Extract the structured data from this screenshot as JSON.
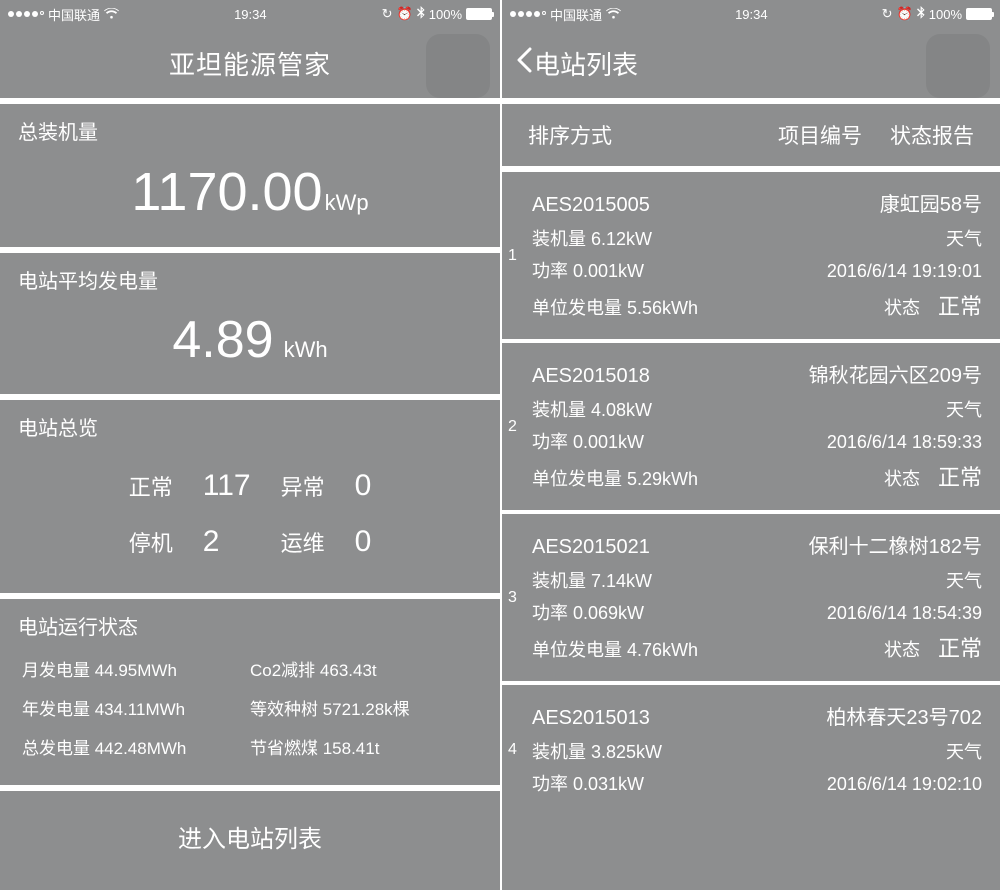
{
  "colors": {
    "bg": "#8d8e8f",
    "fg": "#ffffff",
    "divider": "#ffffff"
  },
  "statusbar": {
    "carrier": "中国联通",
    "time": "19:34",
    "battery_pct": "100%",
    "signal_dots_filled": 4,
    "signal_dots_total": 5
  },
  "left": {
    "title": "亚坦能源管家",
    "capacity": {
      "label": "总装机量",
      "value": "1170.00",
      "unit": "kWp"
    },
    "avg": {
      "label": "电站平均发电量",
      "value": "4.89",
      "unit": "kWh"
    },
    "overview": {
      "label": "电站总览",
      "normal_label": "正常",
      "normal_value": "117",
      "abnormal_label": "异常",
      "abnormal_value": "0",
      "down_label": "停机",
      "down_value": "2",
      "maint_label": "运维",
      "maint_value": "0"
    },
    "running": {
      "label": "电站运行状态",
      "items": [
        {
          "k": "月发电量",
          "v": "44.95MWh"
        },
        {
          "k": "Co2减排",
          "v": "463.43t"
        },
        {
          "k": "年发电量",
          "v": "434.11MWh"
        },
        {
          "k": "等效种树",
          "v": "5721.28k棵"
        },
        {
          "k": "总发电量",
          "v": "442.48MWh"
        },
        {
          "k": "节省燃煤",
          "v": "158.41t"
        }
      ]
    },
    "enter": "进入电站列表"
  },
  "right": {
    "back": "电站列表",
    "tabs": {
      "sort": "排序方式",
      "project": "项目编号",
      "status": "状态报告"
    },
    "field_labels": {
      "capacity": "装机量",
      "power": "功率",
      "unitgen": "单位发电量",
      "weather": "天气",
      "status": "状态"
    },
    "stations": [
      {
        "idx": "1",
        "id": "AES2015005",
        "name": "康虹园58号",
        "capacity": "6.12kW",
        "power": "0.001kW",
        "time": "2016/6/14 19:19:01",
        "unitgen": "5.56kWh",
        "status": "正常"
      },
      {
        "idx": "2",
        "id": "AES2015018",
        "name": "锦秋花园六区209号",
        "capacity": "4.08kW",
        "power": "0.001kW",
        "time": "2016/6/14 18:59:33",
        "unitgen": "5.29kWh",
        "status": "正常"
      },
      {
        "idx": "3",
        "id": "AES2015021",
        "name": "保利十二橡树182号",
        "capacity": "7.14kW",
        "power": "0.069kW",
        "time": "2016/6/14 18:54:39",
        "unitgen": "4.76kWh",
        "status": "正常"
      },
      {
        "idx": "4",
        "id": "AES2015013",
        "name": "柏林春天23号702",
        "capacity": "3.825kW",
        "power": "0.031kW",
        "time": "2016/6/14 19:02:10",
        "unitgen": "",
        "status": ""
      }
    ]
  }
}
